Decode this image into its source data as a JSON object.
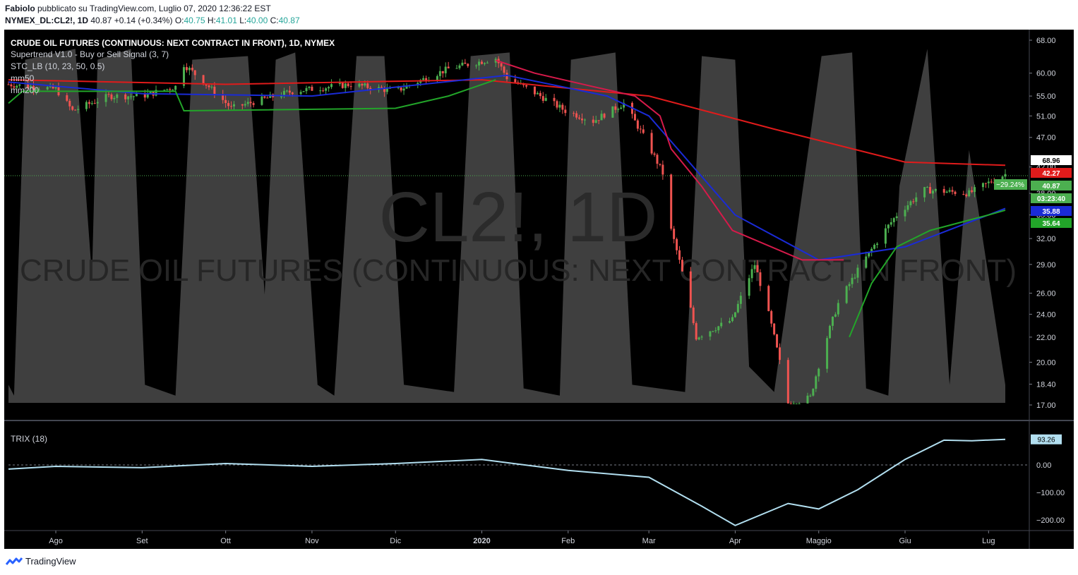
{
  "header": {
    "publisher_line": "Fabiolo pubblicato su TradingView.com, Luglio 07, 2020 12:36:22 EST",
    "publisher_name": "Fabiolo",
    "publisher_rest": " pubblicato su TradingView.com, Luglio 07, 2020 12:36:22 EST",
    "symbol": "NYMEX_DL:CL2!, 1D",
    "last": "40.87",
    "change": "+0.14 (+0.34%)",
    "o_label": "O:",
    "o_value": "40.75",
    "h_label": "H:",
    "h_value": "41.01",
    "l_label": "L:",
    "l_value": "40.00",
    "c_label": "C:",
    "c_value": "40.87"
  },
  "legend": {
    "title": "CRUDE OIL FUTURES (CONTINUOUS: NEXT CONTRACT IN FRONT), 1D, NYMEX",
    "indicators": [
      "Supertrend V1.0 - Buy or Sell Signal (3, 7)",
      "STC_LB (10, 23, 50, 0.5)",
      "mm50",
      "mm200"
    ]
  },
  "watermark": {
    "main": "CL2!, 1D",
    "sub": "CRUDE OIL FUTURES (CONTINUOUS: NEXT CONTRACT IN FRONT)"
  },
  "footer": {
    "brand": "TradingView"
  },
  "colors": {
    "background": "#000000",
    "up": "#4caf50",
    "down": "#ef5350",
    "supertrend_up": "#22a529",
    "supertrend_down": "#d61a4a",
    "mm50": "#1a2bd6",
    "mm200": "#e01b1b",
    "stc": "#4a4a4a",
    "trix": "#b2dff0"
  },
  "chart_data": [
    {
      "type": "candlestick",
      "title": "CRUDE OIL FUTURES (CONTINUOUS: NEXT CONTRACT IN FRONT), 1D, NYMEX",
      "y_scale": "log",
      "ylim": [
        17,
        68
      ],
      "y_ticks": [
        "68.00",
        "60.00",
        "55.00",
        "51.00",
        "47.00",
        "42.00",
        "38.00",
        "35.00",
        "32.00",
        "29.00",
        "26.00",
        "24.00",
        "22.00",
        "20.00",
        "18.40",
        "17.00"
      ],
      "x_ticks": [
        "Ago",
        "Set",
        "Ott",
        "Nov",
        "Dic",
        "2020",
        "Feb",
        "Mar",
        "Apr",
        "Maggio",
        "Giu",
        "Lug"
      ],
      "x_tick_dates": [
        "2019-08-01",
        "2019-09-01",
        "2019-10-01",
        "2019-11-01",
        "2019-12-01",
        "2020-01-01",
        "2020-02-01",
        "2020-03-01",
        "2020-04-01",
        "2020-05-01",
        "2020-06-01",
        "2020-07-01"
      ],
      "price_axis_labels": [
        {
          "text": "68.96",
          "bg": "#ffffff",
          "fg": "#000000"
        },
        {
          "text": "42.27",
          "bg": "#e01b1b",
          "fg": "#ffffff"
        },
        {
          "text": "40.87",
          "bg": "#4caf50",
          "fg": "#ffffff"
        },
        {
          "text": "03:23:40",
          "bg": "#4caf50",
          "fg": "#ffffff"
        },
        {
          "text": "35.88",
          "bg": "#1a2bd6",
          "fg": "#ffffff"
        },
        {
          "text": "35.64",
          "bg": "#22a529",
          "fg": "#ffffff"
        }
      ],
      "change_badge": "−29.24%",
      "price_series_sample": [
        [
          "2019-07-15",
          57.5
        ],
        [
          "2019-08-01",
          56.5
        ],
        [
          "2019-08-07",
          52
        ],
        [
          "2019-08-20",
          55
        ],
        [
          "2019-09-01",
          55
        ],
        [
          "2019-09-13",
          57
        ],
        [
          "2019-09-16",
          62
        ],
        [
          "2019-10-03",
          52.5
        ],
        [
          "2019-10-25",
          56
        ],
        [
          "2019-11-15",
          57.5
        ],
        [
          "2019-12-01",
          56
        ],
        [
          "2019-12-20",
          61
        ],
        [
          "2020-01-06",
          63.5
        ],
        [
          "2020-01-10",
          59
        ],
        [
          "2020-01-31",
          52
        ],
        [
          "2020-02-10",
          50
        ],
        [
          "2020-02-21",
          53.5
        ],
        [
          "2020-03-06",
          41
        ],
        [
          "2020-03-09",
          33
        ],
        [
          "2020-03-18",
          22
        ],
        [
          "2020-03-31",
          23.5
        ],
        [
          "2020-04-08",
          29
        ],
        [
          "2020-04-20",
          17
        ],
        [
          "2020-04-28",
          17.5
        ],
        [
          "2020-05-08",
          25
        ],
        [
          "2020-05-29",
          35
        ],
        [
          "2020-06-08",
          38.5
        ],
        [
          "2020-06-24",
          38
        ],
        [
          "2020-07-07",
          40.87
        ]
      ],
      "mm50_sample": [
        [
          "2019-07-15",
          58
        ],
        [
          "2019-09-01",
          55.5
        ],
        [
          "2019-11-01",
          55
        ],
        [
          "2020-01-10",
          59.5
        ],
        [
          "2020-02-15",
          55
        ],
        [
          "2020-03-01",
          51
        ],
        [
          "2020-04-01",
          35
        ],
        [
          "2020-05-01",
          29.5
        ],
        [
          "2020-06-01",
          31
        ],
        [
          "2020-07-07",
          35.88
        ]
      ],
      "mm200_sample": [
        [
          "2019-07-15",
          58.5
        ],
        [
          "2019-10-01",
          57.5
        ],
        [
          "2020-01-01",
          58.5
        ],
        [
          "2020-03-01",
          55
        ],
        [
          "2020-04-15",
          48.5
        ],
        [
          "2020-06-01",
          42.8
        ],
        [
          "2020-07-07",
          42.27
        ]
      ],
      "stc_range": [
        0,
        100
      ]
    },
    {
      "type": "line",
      "title": "TRIX (18)",
      "ylim": [
        -200,
        100
      ],
      "y_ticks": [
        "0.00",
        "−100.00",
        "−200.00"
      ],
      "last_value_label": "93.26",
      "series": [
        {
          "name": "TRIX (18)",
          "values": [
            [
              "2019-07-15",
              -15
            ],
            [
              "2019-08-01",
              -5
            ],
            [
              "2019-09-01",
              -10
            ],
            [
              "2019-10-01",
              5
            ],
            [
              "2019-11-01",
              -5
            ],
            [
              "2019-12-01",
              5
            ],
            [
              "2020-01-01",
              20
            ],
            [
              "2020-02-01",
              -20
            ],
            [
              "2020-03-01",
              -45
            ],
            [
              "2020-03-20",
              -150
            ],
            [
              "2020-04-01",
              -220
            ],
            [
              "2020-04-20",
              -140
            ],
            [
              "2020-05-01",
              -160
            ],
            [
              "2020-05-15",
              -90
            ],
            [
              "2020-06-01",
              20
            ],
            [
              "2020-06-15",
              90
            ],
            [
              "2020-06-25",
              88
            ],
            [
              "2020-07-07",
              93
            ]
          ]
        }
      ]
    }
  ]
}
